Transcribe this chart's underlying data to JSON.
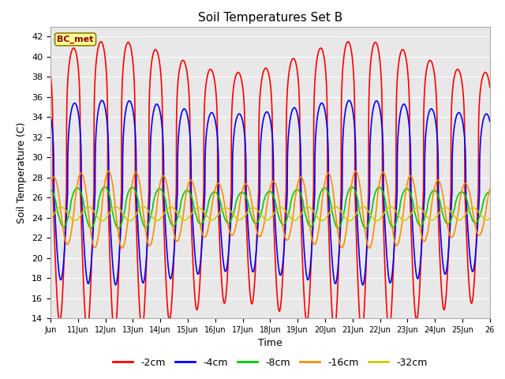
{
  "title": "Soil Temperatures Set B",
  "xlabel": "Time",
  "ylabel": "Soil Temperature (C)",
  "ylim": [
    14,
    43
  ],
  "yticks": [
    14,
    16,
    18,
    20,
    22,
    24,
    26,
    28,
    30,
    32,
    34,
    36,
    38,
    40,
    42
  ],
  "annotation": "BC_met",
  "annotation_color": "#8B0000",
  "annotation_bg": "#FFFF99",
  "colors": {
    "-2cm": "#FF0000",
    "-4cm": "#0000FF",
    "-8cm": "#00CC00",
    "-16cm": "#FF8C00",
    "-32cm": "#CCCC00"
  },
  "line_width": 1.2,
  "background_color": "#E8E8E8",
  "grid_color": "#FFFFFF",
  "x_start": 10.0,
  "x_end": 26.0,
  "xtick_labels": [
    "Jun",
    "11Jun",
    "12Jun",
    "13Jun",
    "14Jun",
    "15Jun",
    "16Jun",
    "17Jun",
    "18Jun",
    "19Jun",
    "20Jun",
    "21Jun",
    "22Jun",
    "23Jun",
    "24Jun",
    "25Jun",
    "26"
  ],
  "xtick_positions": [
    10,
    11,
    12,
    13,
    14,
    15,
    16,
    17,
    18,
    19,
    20,
    21,
    22,
    23,
    24,
    25,
    26
  ]
}
